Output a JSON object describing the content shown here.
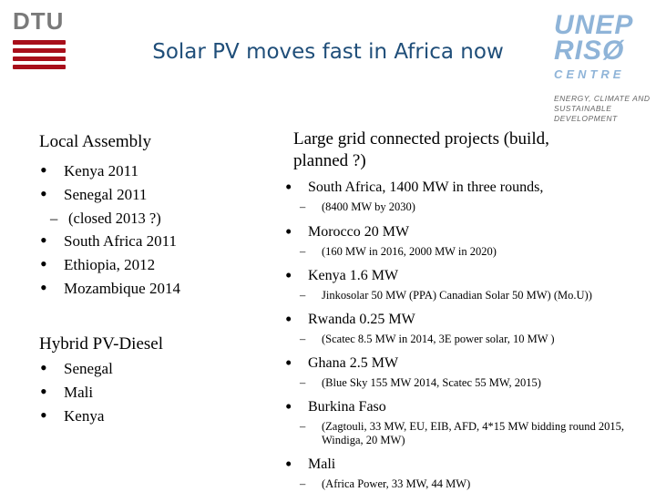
{
  "header": {
    "dtu_logo_text": "DTU",
    "title": "Solar PV moves fast in Africa now",
    "unep_logo": {
      "line1": "UNEP",
      "line2": "RISØ",
      "line3": "CENTRE",
      "tagline": "ENERGY, CLIMATE AND SUSTAINABLE DEVELOPMENT"
    }
  },
  "local_assembly": {
    "heading": "Local Assembly",
    "items": [
      {
        "label": "Kenya 2011"
      },
      {
        "label": "Senegal 2011",
        "sub": "(closed 2013 ?)"
      },
      {
        "label": "South Africa 2011"
      },
      {
        "label": "Ethiopia, 2012"
      },
      {
        "label": "Mozambique 2014"
      }
    ]
  },
  "hybrid": {
    "heading": "Hybrid PV-Diesel",
    "items": [
      {
        "label": "Senegal"
      },
      {
        "label": "Mali"
      },
      {
        "label": "Kenya"
      }
    ]
  },
  "large_grid": {
    "heading": "Large grid connected projects  (build, planned ?)",
    "items": [
      {
        "label": "South Africa, 1400 MW in three rounds,",
        "sub": "(8400 MW by 2030)"
      },
      {
        "label": "Morocco  20 MW",
        "sub": "(160 MW in 2016, 2000 MW in 2020)"
      },
      {
        "label": "Kenya  1.6 MW",
        "sub": "Jinkosolar 50 MW (PPA) Canadian Solar 50 MW) (Mo.U))"
      },
      {
        "label": "Rwanda  0.25 MW",
        "sub": "(Scatec 8.5 MW in 2014,   3E power solar, 10 MW )"
      },
      {
        "label": "Ghana  2.5 MW",
        "sub": "(Blue Sky 155 MW 2014, Scatec 55 MW, 2015)"
      },
      {
        "label": "Burkina Faso",
        "sub": "(Zagtouli, 33 MW,  EU, EIB, AFD,  4*15 MW bidding round 2015,  Windiga, 20 MW)"
      },
      {
        "label": "Mali",
        "sub": "(Africa Power, 33 MW, 44 MW)"
      }
    ]
  }
}
